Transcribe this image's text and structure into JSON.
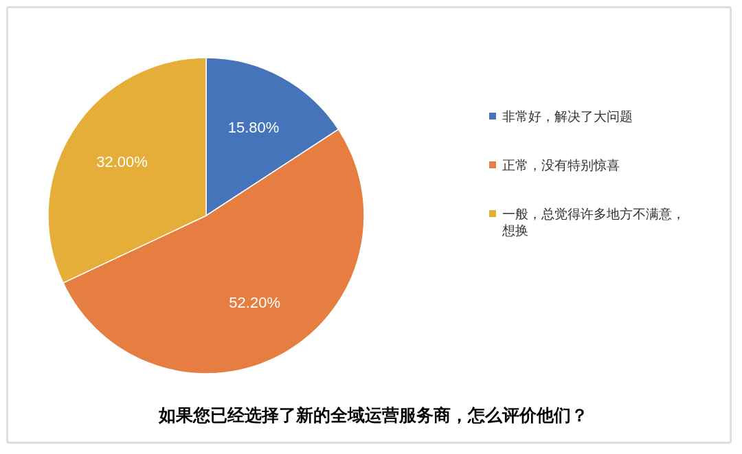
{
  "chart_data": {
    "type": "pie",
    "title": "如果您已经选择了新的全域运营服务商，怎么评价他们？",
    "categories": [
      "非常好，解决了大问题",
      "正常，没有特别惊喜",
      "一般，总觉得许多地方不满意，想换"
    ],
    "values": [
      15.8,
      52.2,
      32
    ],
    "colors": [
      "#4674bb",
      "#e57e40",
      "#e5ae38"
    ],
    "value_labels": [
      "15.80%",
      "52.20%",
      "32.00%"
    ],
    "legend": "right"
  }
}
